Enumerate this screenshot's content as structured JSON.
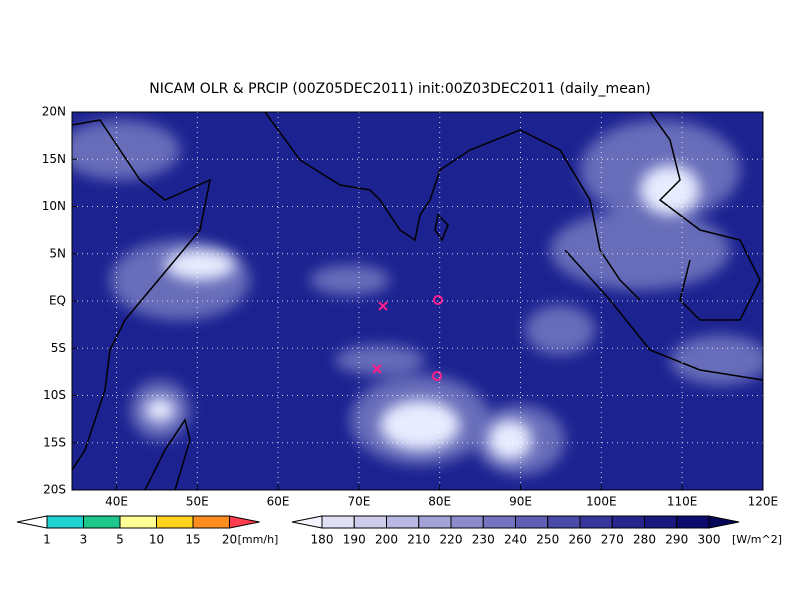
{
  "title": "NICAM OLR & PRCIP (00Z05DEC2011) init:00Z03DEC2011 (daily_mean)",
  "lon_ticks": [
    "40E",
    "50E",
    "60E",
    "70E",
    "80E",
    "90E",
    "100E",
    "110E",
    "120E"
  ],
  "lat_ticks": [
    "20N",
    "15N",
    "10N",
    "5N",
    "EQ",
    "5S",
    "10S",
    "15S",
    "20S"
  ],
  "precip_colorbar": {
    "labels": [
      "1",
      "3",
      "5",
      "10",
      "15",
      "20"
    ],
    "unit": "[mm/h]",
    "colors": [
      "#ffffff",
      "#1ed2d2",
      "#1ec88c",
      "#ffff96",
      "#ffd21e",
      "#ff8c1e",
      "#ff3c50"
    ]
  },
  "olr_colorbar": {
    "labels": [
      "180",
      "190",
      "200",
      "210",
      "220",
      "230",
      "240",
      "250",
      "260",
      "270",
      "280",
      "290",
      "300"
    ],
    "unit": "[W/m^2]",
    "colors": [
      "#f4f4fc",
      "#e0e0f4",
      "#cdcdeb",
      "#b8b8e2",
      "#a3a3d8",
      "#8c8ccd",
      "#7474c0",
      "#5f5fb4",
      "#4a4aa8",
      "#36369c",
      "#26268e",
      "#18187e",
      "#0c0c6c",
      "#05055a"
    ]
  }
}
